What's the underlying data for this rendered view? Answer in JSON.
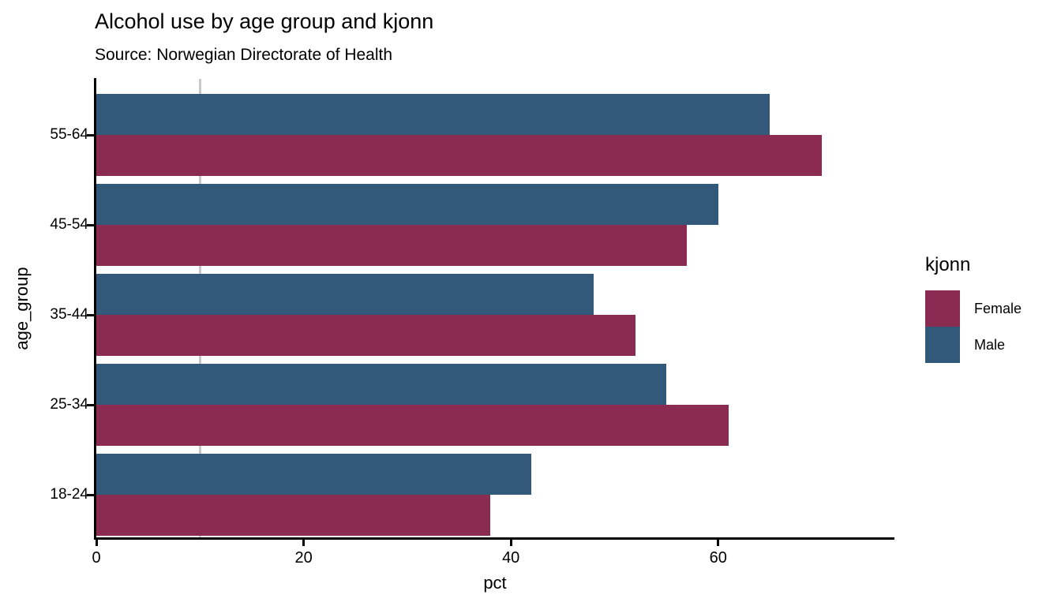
{
  "header": {
    "title": "Alcohol use by age group and kjonn",
    "subtitle": "Source: Norwegian Directorate of Health"
  },
  "chart_data": {
    "type": "bar",
    "orientation": "horizontal",
    "title": "Alcohol use by age group and kjonn",
    "subtitle": "Source: Norwegian Directorate of Health",
    "xlabel": "pct",
    "ylabel": "age_group",
    "categories": [
      "55-64",
      "45-54",
      "35-44",
      "25-34",
      "18-24"
    ],
    "series": [
      {
        "name": "Female",
        "color": "#8c2b52",
        "values": [
          70,
          57,
          52,
          61,
          38
        ]
      },
      {
        "name": "Male",
        "color": "#33597a",
        "values": [
          65,
          60,
          48,
          55,
          42
        ]
      }
    ],
    "bar_order_top_to_bottom": [
      "Male",
      "Female"
    ],
    "xlim": [
      0,
      77
    ],
    "xticks": [
      0,
      20,
      40,
      60
    ],
    "minor_gridline_x": 10,
    "grid": "single faint vertical minor gridline at x=10",
    "gridline_color": "#c8c8c8",
    "axis_color": "#000000",
    "legend": {
      "title": "kjonn",
      "position": "right",
      "entries": [
        "Female",
        "Male"
      ]
    }
  }
}
